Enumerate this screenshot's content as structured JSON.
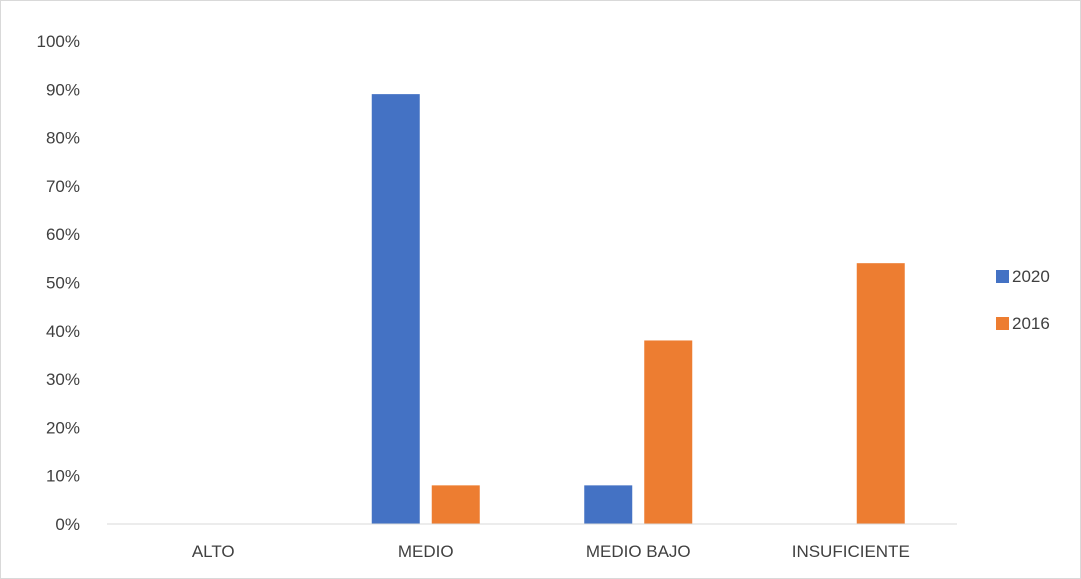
{
  "chart_data": {
    "type": "bar",
    "categories": [
      "ALTO",
      "MEDIO",
      "MEDIO BAJO",
      "INSUFICIENTE"
    ],
    "series": [
      {
        "name": "2020",
        "values": [
          0,
          89,
          8,
          0
        ],
        "color": "#4472C4"
      },
      {
        "name": "2016",
        "values": [
          0,
          8,
          38,
          54
        ],
        "color": "#ED7D31"
      }
    ],
    "ylim": [
      0,
      100
    ],
    "yticks": [
      0,
      10,
      20,
      30,
      40,
      50,
      60,
      70,
      80,
      90,
      100
    ],
    "ytick_labels": [
      "0%",
      "10%",
      "20%",
      "30%",
      "40%",
      "50%",
      "60%",
      "70%",
      "80%",
      "90%",
      "100%"
    ],
    "grid": false,
    "legend_position": "right",
    "axis_color": "#d9d9d9",
    "text_color": "#404040"
  }
}
